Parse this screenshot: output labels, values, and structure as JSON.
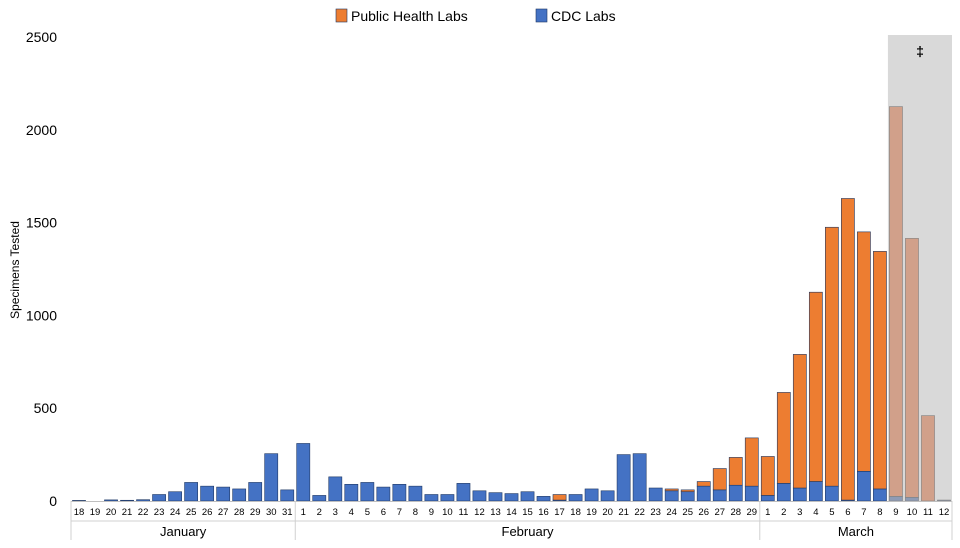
{
  "chart_data": {
    "type": "bar",
    "stacked": true,
    "title": "",
    "xlabel": "",
    "ylabel": "Specimens Tested",
    "ylim": [
      0,
      2500
    ],
    "yticks": [
      0,
      500,
      1000,
      1500,
      2000,
      2500
    ],
    "grid": false,
    "legend_position": "top",
    "colors": {
      "public": "#ED7D31",
      "cdc": "#4472C4",
      "public_shaded": "#D1A08A",
      "cdc_shaded": "#8E9BB5",
      "shade": "#D9D9D9",
      "bar_border": "#1F3864",
      "shaded_border": "#808080"
    },
    "categories": [
      "18",
      "19",
      "20",
      "21",
      "22",
      "23",
      "24",
      "25",
      "26",
      "27",
      "28",
      "29",
      "30",
      "31",
      "1",
      "2",
      "3",
      "4",
      "5",
      "6",
      "7",
      "8",
      "9",
      "10",
      "11",
      "12",
      "13",
      "14",
      "15",
      "16",
      "17",
      "18",
      "19",
      "20",
      "21",
      "22",
      "23",
      "24",
      "25",
      "26",
      "27",
      "28",
      "29",
      "1",
      "2",
      "3",
      "4",
      "5",
      "6",
      "7",
      "8",
      "9",
      "10",
      "11",
      "12"
    ],
    "series": [
      {
        "name": "CDC Labs",
        "key": "cdc",
        "values": [
          3,
          0,
          6,
          4,
          7,
          35,
          50,
          100,
          80,
          75,
          65,
          100,
          255,
          60,
          310,
          30,
          130,
          90,
          100,
          75,
          90,
          80,
          35,
          35,
          95,
          55,
          45,
          40,
          50,
          25,
          5,
          35,
          65,
          55,
          250,
          255,
          70,
          55,
          50,
          80,
          60,
          85,
          80,
          30,
          95,
          70,
          105,
          80,
          5,
          160,
          65,
          25,
          20,
          0,
          5
        ]
      },
      {
        "name": "Public Health Labs",
        "key": "public",
        "values": [
          0,
          0,
          0,
          0,
          0,
          0,
          0,
          0,
          0,
          0,
          0,
          0,
          0,
          0,
          0,
          0,
          0,
          0,
          0,
          0,
          0,
          0,
          0,
          0,
          0,
          0,
          0,
          0,
          0,
          0,
          30,
          0,
          0,
          0,
          0,
          0,
          0,
          10,
          10,
          25,
          115,
          150,
          260,
          210,
          490,
          720,
          1020,
          1395,
          1625,
          1290,
          1280,
          2100,
          1395,
          460,
          0
        ]
      }
    ],
    "months": [
      {
        "label": "January",
        "from": 0,
        "to": 13
      },
      {
        "label": "February",
        "from": 14,
        "to": 42
      },
      {
        "label": "March",
        "from": 43,
        "to": 54
      }
    ],
    "shaded_region": {
      "from": 51,
      "to": 54,
      "label": "‡"
    }
  }
}
